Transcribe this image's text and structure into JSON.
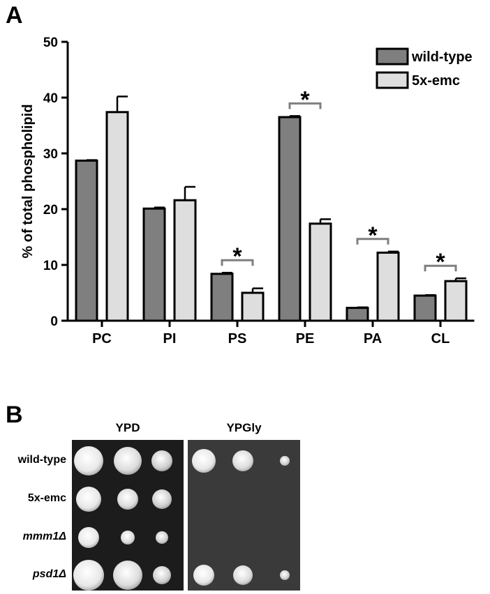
{
  "panel_a_label": "A",
  "panel_b_label": "B",
  "chart_data": {
    "type": "bar",
    "ylabel": "% of total phospholipid",
    "ylim": [
      0,
      50
    ],
    "yticks": [
      0,
      10,
      20,
      30,
      40,
      50
    ],
    "categories": [
      "PC",
      "PI",
      "PS",
      "PE",
      "PA",
      "CL"
    ],
    "series": [
      {
        "name": "wild-type",
        "color": "#7f7f7f",
        "values": [
          28.7,
          20.1,
          8.4,
          36.5,
          2.3,
          4.5
        ],
        "errors": [
          0.1,
          0.2,
          0.2,
          0.2,
          0.1,
          0.1
        ]
      },
      {
        "name": "5x-emc",
        "color": "#dedede",
        "values": [
          37.4,
          21.6,
          5.0,
          17.4,
          12.2,
          7.1
        ],
        "errors": [
          2.8,
          2.4,
          0.8,
          0.8,
          0.2,
          0.5
        ]
      }
    ],
    "significance": [
      {
        "category": "PS",
        "label": "*"
      },
      {
        "category": "PE",
        "label": "*"
      },
      {
        "category": "PA",
        "label": "*"
      },
      {
        "category": "CL",
        "label": "*"
      }
    ],
    "legend_position": "top-right",
    "grid": false
  },
  "growth_assay": {
    "conditions": [
      "YPD",
      "YPGly"
    ],
    "strains": [
      {
        "name": "wild-type",
        "italic": false
      },
      {
        "name": "5x-emc",
        "italic": false
      },
      {
        "name": "mmm1Δ",
        "italic": true
      },
      {
        "name": "psd1Δ",
        "italic": true
      }
    ]
  }
}
